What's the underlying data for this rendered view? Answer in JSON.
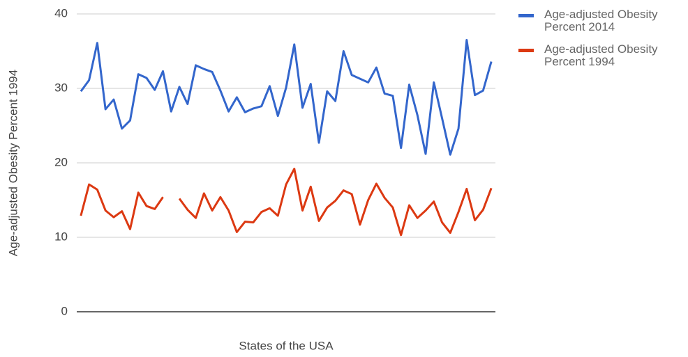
{
  "chart_data": {
    "type": "line",
    "xlabel": "States of the USA",
    "ylabel": "Age-adjusted Obesity Percent 1994",
    "categories": [
      null,
      null,
      null,
      null,
      null,
      null,
      null,
      null,
      null,
      null,
      null,
      null,
      null,
      null,
      null,
      null,
      null,
      null,
      null,
      null,
      null,
      null,
      null,
      null,
      null,
      null,
      null,
      null,
      null,
      null,
      null,
      null,
      null,
      null,
      null,
      null,
      null,
      null,
      null,
      null,
      null,
      null,
      null,
      null,
      null,
      null,
      null,
      null,
      null,
      null,
      null
    ],
    "series": [
      {
        "name": "Age-adjusted Obesity Percent 2014",
        "color": "#3366cc",
        "values": [
          29.6,
          31.1,
          36.1,
          27.2,
          28.5,
          24.6,
          25.7,
          31.9,
          31.4,
          29.8,
          32.3,
          26.9,
          30.2,
          27.9,
          33.1,
          32.6,
          32.2,
          29.7,
          26.9,
          28.8,
          26.8,
          27.3,
          27.6,
          30.3,
          26.3,
          30.1,
          35.9,
          27.4,
          30.6,
          22.7,
          29.6,
          28.3,
          35.0,
          31.8,
          31.3,
          30.8,
          32.8,
          29.3,
          29.0,
          22.0,
          30.5,
          26.4,
          21.2,
          30.8,
          26.0,
          21.1,
          24.6,
          36.5,
          29.1,
          29.7,
          33.6
        ]
      },
      {
        "name": "Age-adjusted Obesity Percent 1994",
        "color": "#dc3912",
        "values": [
          12.9,
          17.1,
          16.4,
          13.6,
          12.7,
          13.5,
          11.1,
          16.0,
          14.2,
          13.8,
          15.4,
          null,
          15.2,
          13.7,
          12.6,
          15.9,
          13.6,
          15.4,
          13.6,
          10.7,
          12.1,
          12.0,
          13.4,
          13.9,
          12.9,
          17.1,
          19.2,
          13.6,
          16.8,
          12.2,
          14.0,
          14.9,
          16.3,
          15.8,
          11.7,
          15.0,
          17.2,
          15.3,
          14.0,
          10.3,
          14.3,
          12.6,
          13.6,
          14.8,
          12.0,
          10.6,
          13.4,
          16.5,
          12.3,
          13.7,
          16.6
        ]
      }
    ],
    "ylim": [
      0,
      40
    ],
    "yticks": [
      0,
      10,
      20,
      30,
      40
    ],
    "grid": true,
    "legend": "right"
  }
}
